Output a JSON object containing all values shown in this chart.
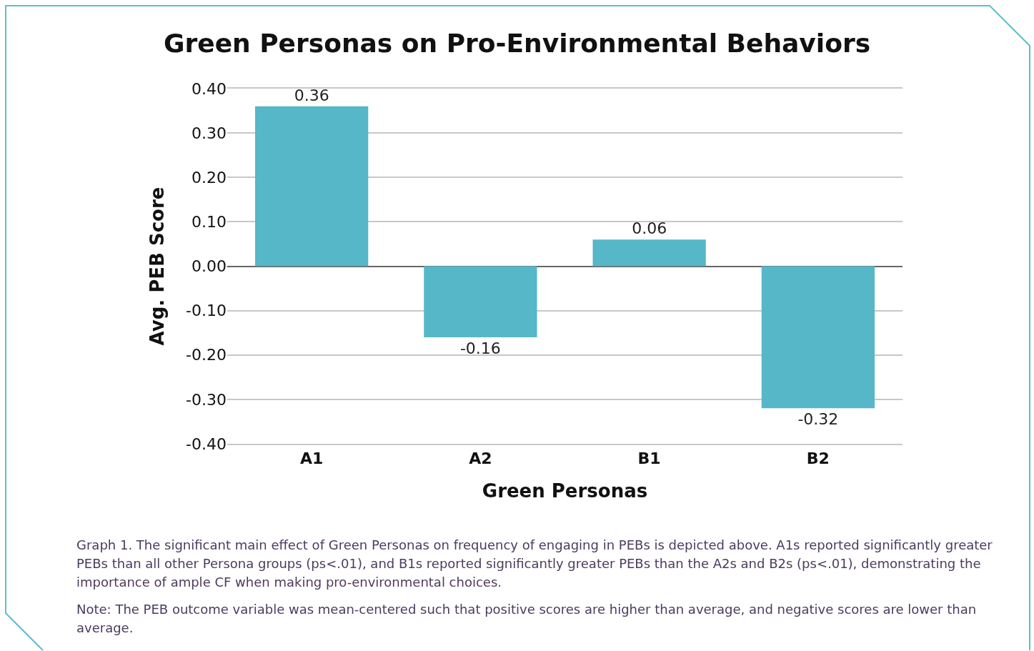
{
  "chart_data": {
    "type": "bar",
    "title": "Green Personas on Pro-Environmental Behaviors",
    "xlabel": "Green Personas",
    "ylabel": "Avg. PEB Score",
    "categories": [
      "A1",
      "A2",
      "B1",
      "B2"
    ],
    "values": [
      0.36,
      -0.16,
      0.06,
      -0.32
    ],
    "color": "#56b7c8",
    "data_labels": true,
    "ylim": [
      -0.4,
      0.4
    ],
    "yticks": [
      {
        "value": -0.4,
        "label": "-0.40"
      },
      {
        "value": -0.3,
        "label": "-0.30"
      },
      {
        "value": -0.2,
        "label": "-0.20"
      },
      {
        "value": -0.1,
        "label": "-0.10"
      },
      {
        "value": 0,
        "label": "0.00"
      },
      {
        "value": 0.1,
        "label": "0.10"
      },
      {
        "value": 0.2,
        "label": "0.20"
      },
      {
        "value": 0.3,
        "label": "0.30"
      },
      {
        "value": 0.4,
        "label": "0.40"
      }
    ],
    "grid": "y",
    "annotations": [
      "Graph 1. The significant main effect of Green Personas on frequency of engaging in PEBs is depicted above. A1s reported significantly greater PEBs than all other Persona groups (ps<.01), and B1s reported significantly greater PEBs than the A2s and B2s (ps<.01), demonstrating the importance of ample CF when making pro-environmental choices.",
      "Note: The PEB outcome variable was mean-centered such that positive scores are higher than average, and negative scores are lower than average."
    ]
  }
}
